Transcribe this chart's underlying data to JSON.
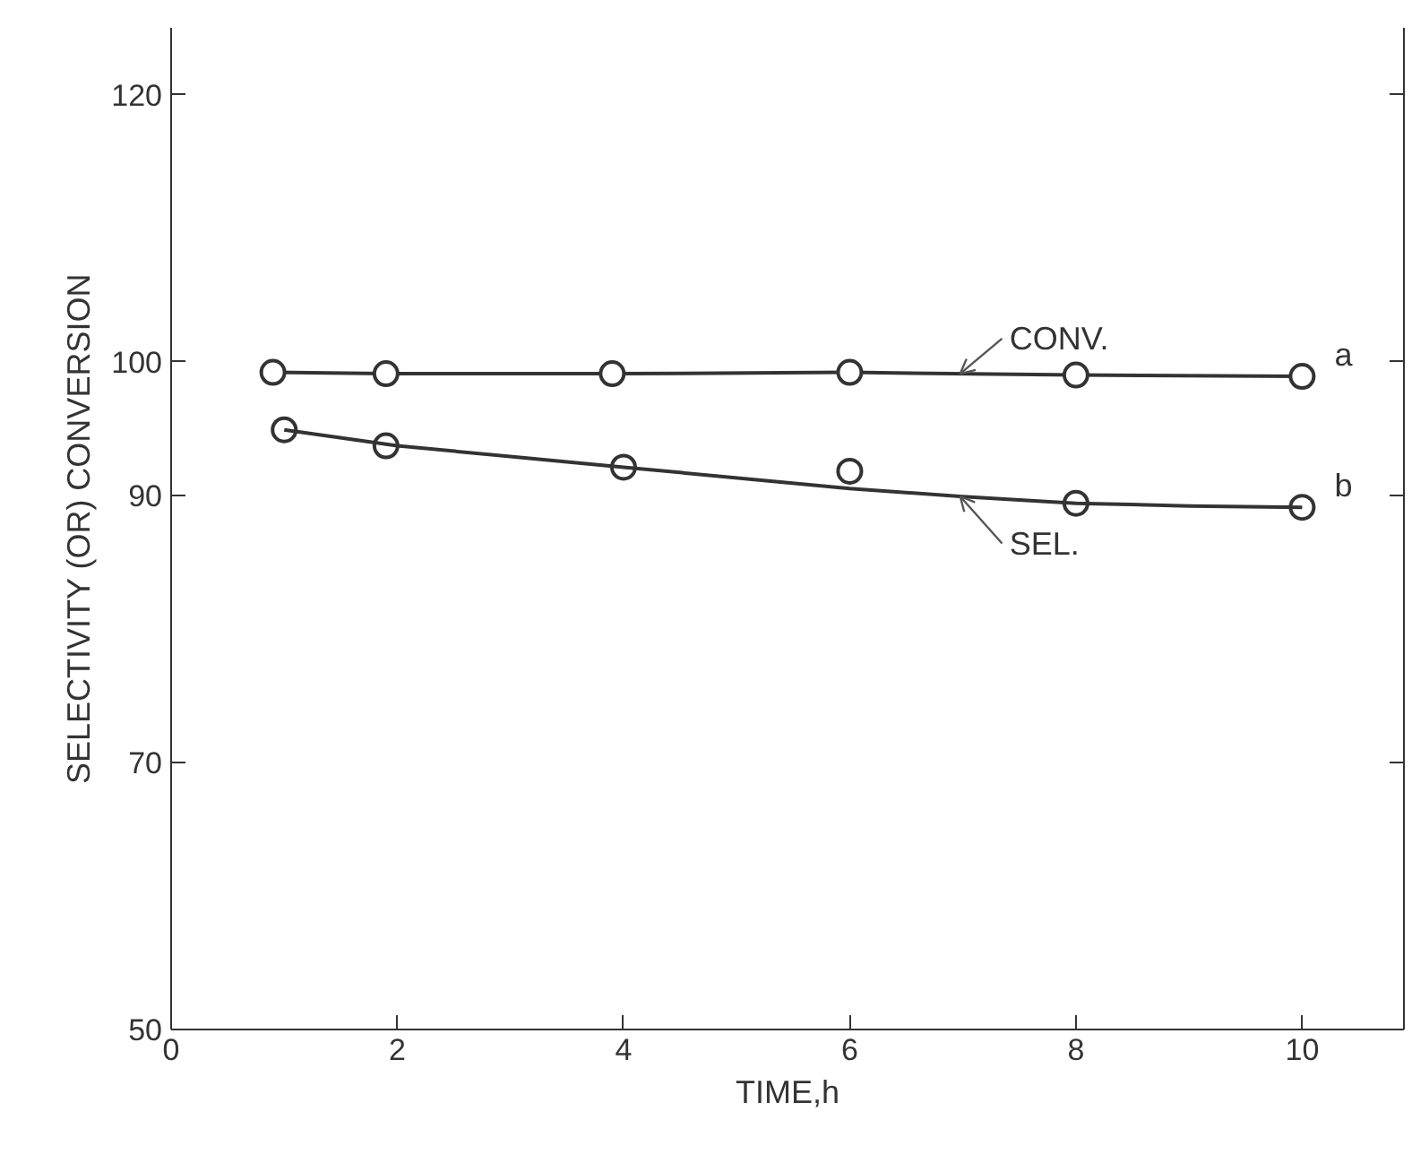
{
  "chart_data": {
    "type": "line",
    "xlabel": "TIME,h",
    "ylabel": "SELECTIVITY (OR) CONVERSION",
    "xlim": [
      0,
      10.9
    ],
    "xticks": [
      0,
      2,
      4,
      6,
      8,
      10
    ],
    "ylim": [
      50,
      125
    ],
    "yticks": [
      50,
      70,
      90,
      100,
      120
    ],
    "grid": false,
    "legend": false,
    "marker": "circle",
    "line_style": "solid",
    "series": [
      {
        "name": "CONV.",
        "color": "#333333",
        "x": [
          0.9,
          1.9,
          3.9,
          6.0,
          8.0,
          10.0
        ],
        "values": [
          99.2,
          99.1,
          99.1,
          99.2,
          99.0,
          98.9
        ]
      },
      {
        "type": "scatter",
        "color": "#333333",
        "x": [
          1.0,
          1.9,
          4.0,
          6.0,
          8.0,
          10.0
        ],
        "values": [
          94.9,
          93.7,
          92.1,
          91.8,
          89.4,
          89.1
        ]
      },
      {
        "name": "SEL.",
        "type": "line",
        "marker": "none",
        "color": "#333333",
        "x": [
          1.0,
          2.0,
          4.0,
          6.0,
          7.0,
          8.0,
          9.0,
          10.0
        ],
        "values": [
          94.9,
          93.7,
          92.1,
          90.5,
          89.9,
          89.4,
          89.2,
          89.1
        ]
      }
    ],
    "annotations": [
      "a",
      "b"
    ]
  }
}
